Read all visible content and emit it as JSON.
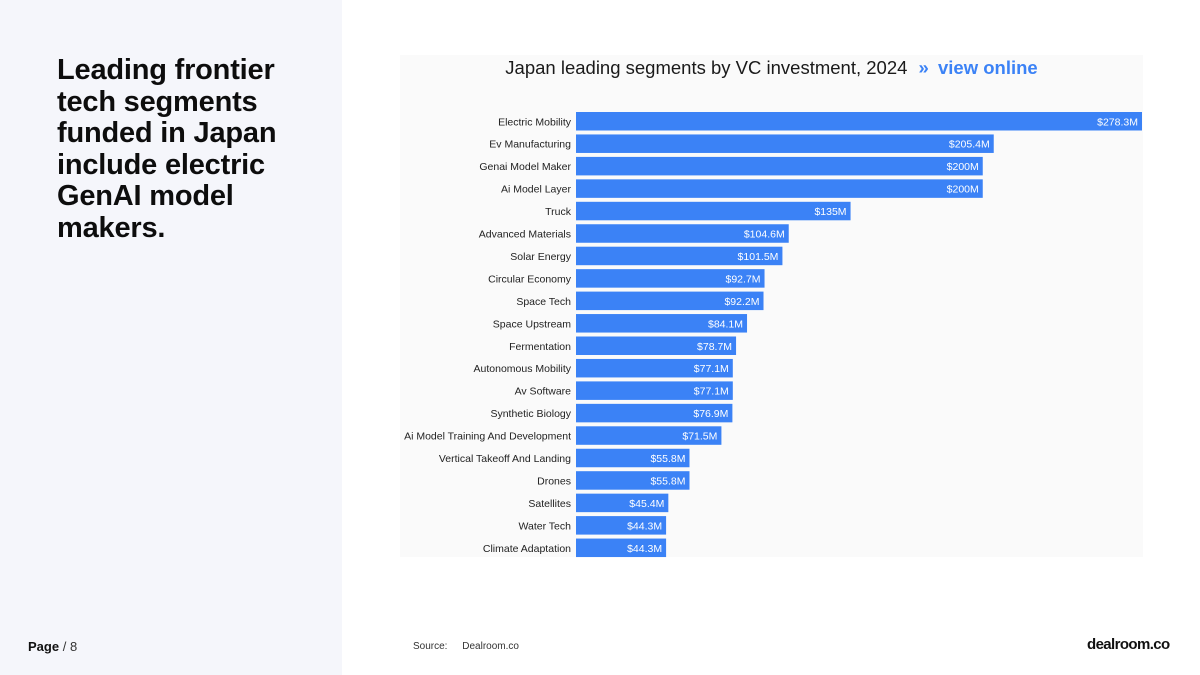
{
  "headline": "Leading frontier tech segments funded in Japan include electric GenAI model makers.",
  "page": {
    "label": "Page",
    "sep": "/",
    "number": "8"
  },
  "chart_title": {
    "text": "Japan leading segments by VC investment, 2024",
    "separator": "»",
    "link": "view online"
  },
  "source": {
    "label": "Source:",
    "value": "Dealroom.co"
  },
  "logo": "dealroom.co",
  "colors": {
    "bar": "#3b82f6",
    "panel": "#f5f6fb",
    "link": "#3b82f6"
  },
  "chart_data": {
    "type": "bar",
    "orientation": "horizontal",
    "title": "Japan leading segments by VC investment, 2024",
    "xlabel": "",
    "ylabel": "",
    "unit": "$M",
    "xlim": [
      0,
      278.3
    ],
    "grid": false,
    "categories": [
      "Electric Mobility",
      "Ev Manufacturing",
      "Genai Model Maker",
      "Ai Model Layer",
      "Truck",
      "Advanced Materials",
      "Solar Energy",
      "Circular Economy",
      "Space Tech",
      "Space Upstream",
      "Fermentation",
      "Autonomous Mobility",
      "Av Software",
      "Synthetic Biology",
      "Ai Model Training And Development",
      "Vertical Takeoff And Landing",
      "Drones",
      "Satellites",
      "Water Tech",
      "Climate Adaptation"
    ],
    "values": [
      278.3,
      205.4,
      200,
      200,
      135,
      104.6,
      101.5,
      92.7,
      92.2,
      84.1,
      78.7,
      77.1,
      77.1,
      76.9,
      71.5,
      55.8,
      55.8,
      45.4,
      44.3,
      44.3
    ],
    "labels": [
      "$278.3M",
      "$205.4M",
      "$200M",
      "$200M",
      "$135M",
      "$104.6M",
      "$101.5M",
      "$92.7M",
      "$92.2M",
      "$84.1M",
      "$78.7M",
      "$77.1M",
      "$77.1M",
      "$76.9M",
      "$71.5M",
      "$55.8M",
      "$55.8M",
      "$45.4M",
      "$44.3M",
      "$44.3M"
    ]
  }
}
